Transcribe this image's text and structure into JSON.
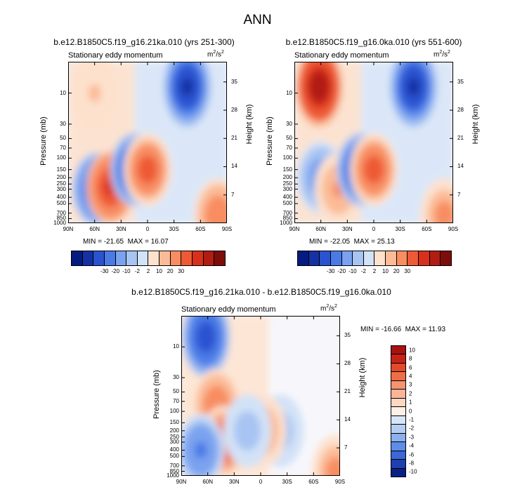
{
  "main_title": "ANN",
  "colors": {
    "scale": [
      "#061b80",
      "#1531a5",
      "#2b53d0",
      "#4a7ae6",
      "#7aa2ef",
      "#a7c4f3",
      "#d2e2f7",
      "#fde1cd",
      "#fbbb97",
      "#f88d62",
      "#ee5a36",
      "#d8301c",
      "#b21d12",
      "#7e0d0a"
    ]
  },
  "chart_data": [
    {
      "type": "heatmap",
      "title": "b.e12.B1850C5.f19_g16.21ka.010 (yrs 251-300)",
      "subtitle": "Stationary eddy momentum",
      "units": "m²/s²",
      "units_base": "m",
      "units_sup1": "2",
      "units_mid": "/s",
      "units_sup2": "2",
      "ylabel": "Pressure (mb)",
      "ylabel_right": "Height (km)",
      "xticks": [
        "90N",
        "60N",
        "30N",
        "0",
        "30S",
        "60S",
        "90S"
      ],
      "yticks": [
        "10",
        "30",
        "50",
        "70",
        "100",
        "150",
        "200",
        "250",
        "300",
        "400",
        "500",
        "700",
        "850",
        "1000"
      ],
      "yticks_right": [
        "35",
        "28",
        "21",
        "14",
        "7"
      ],
      "min_label": "MIN = -21.65",
      "max_label": "MAX = 16.07",
      "min": -21.65,
      "max": 16.07,
      "colorbar_labels": [
        "-30",
        "-20",
        "-10",
        "-2",
        "2",
        "10",
        "20",
        "30"
      ],
      "features": [
        {
          "name": "strat-negative-south",
          "lat": -45,
          "p": 8,
          "value": -20
        },
        {
          "name": "upper-positive-north",
          "lat": 60,
          "p": 10,
          "value": 2
        },
        {
          "name": "neg-60N",
          "lat": 58,
          "p": 300,
          "value": -12
        },
        {
          "name": "pos-45N",
          "lat": 42,
          "p": 280,
          "value": 12
        },
        {
          "name": "neg-15N",
          "lat": 15,
          "p": 150,
          "value": -15
        },
        {
          "name": "pos-eq",
          "lat": 0,
          "p": 150,
          "value": 10
        },
        {
          "name": "pos-surface-south",
          "lat": -80,
          "p": 750,
          "value": 6
        }
      ]
    },
    {
      "type": "heatmap",
      "title": "b.e12.B1850C5.f19_g16.0ka.010 (yrs 551-600)",
      "subtitle": "Stationary eddy momentum",
      "units": "m²/s²",
      "units_base": "m",
      "units_sup1": "2",
      "units_mid": "/s",
      "units_sup2": "2",
      "ylabel": "Pressure (mb)",
      "ylabel_right": "Height (km)",
      "xticks": [
        "90N",
        "60N",
        "30N",
        "0",
        "30S",
        "60S",
        "90S"
      ],
      "yticks": [
        "10",
        "30",
        "50",
        "70",
        "100",
        "150",
        "200",
        "250",
        "300",
        "400",
        "500",
        "700",
        "850",
        "1000"
      ],
      "yticks_right": [
        "35",
        "28",
        "21",
        "14",
        "7"
      ],
      "min_label": "MIN = -22.05",
      "max_label": "MAX = 25.13",
      "min": -22.05,
      "max": 25.13,
      "colorbar_labels": [
        "-30",
        "-20",
        "-10",
        "-2",
        "2",
        "10",
        "20",
        "30"
      ],
      "features": [
        {
          "name": "strat-negative-south",
          "lat": -45,
          "p": 8,
          "value": -20
        },
        {
          "name": "strat-positive-north",
          "lat": 62,
          "p": 8,
          "value": 22
        },
        {
          "name": "neg-60N",
          "lat": 60,
          "p": 200,
          "value": -6
        },
        {
          "name": "pos-40N",
          "lat": 40,
          "p": 300,
          "value": 4
        },
        {
          "name": "neg-15N",
          "lat": 15,
          "p": 150,
          "value": -14
        },
        {
          "name": "pos-eq",
          "lat": 0,
          "p": 150,
          "value": 10
        },
        {
          "name": "pos-surface-south",
          "lat": -80,
          "p": 750,
          "value": 5
        }
      ]
    },
    {
      "type": "heatmap",
      "title": "b.e12.B1850C5.f19_g16.21ka.010 - b.e12.B1850C5.f19_g16.0ka.010",
      "subtitle": "Stationary eddy momentum",
      "units": "m²/s²",
      "units_base": "m",
      "units_sup1": "2",
      "units_mid": "/s",
      "units_sup2": "2",
      "ylabel": "Pressure (mb)",
      "ylabel_right": "Height (km)",
      "xticks": [
        "90N",
        "60N",
        "30N",
        "0",
        "30S",
        "60S",
        "90S"
      ],
      "yticks": [
        "10",
        "30",
        "50",
        "70",
        "100",
        "150",
        "200",
        "250",
        "300",
        "400",
        "500",
        "700",
        "850",
        "1000"
      ],
      "yticks_right": [
        "35",
        "28",
        "21",
        "14",
        "7"
      ],
      "min_label": "MIN = -16.66",
      "max_label": "MAX = 11.93",
      "min": -16.66,
      "max": 11.93,
      "colorbar_labels": [
        "10",
        "8",
        "6",
        "4",
        "3",
        "2",
        "1",
        "0",
        "-1",
        "-2",
        "-3",
        "-4",
        "-6",
        "-8",
        "-10"
      ],
      "features": [
        {
          "name": "strat-negative-north",
          "lat": 62,
          "p": 7,
          "value": -15
        },
        {
          "name": "pos-tongue",
          "lat": 50,
          "p": 80,
          "value": 6
        },
        {
          "name": "pos-45N",
          "lat": 42,
          "p": 300,
          "value": 11
        },
        {
          "name": "neg-65N",
          "lat": 68,
          "p": 400,
          "value": -8
        },
        {
          "name": "neg-20S",
          "lat": -22,
          "p": 200,
          "value": -3
        },
        {
          "name": "pos-eq",
          "lat": -2,
          "p": 200,
          "value": 4
        },
        {
          "name": "neg-15N",
          "lat": 15,
          "p": 200,
          "value": -3
        },
        {
          "name": "pos-surface-south",
          "lat": -85,
          "p": 850,
          "value": 5
        }
      ]
    }
  ]
}
